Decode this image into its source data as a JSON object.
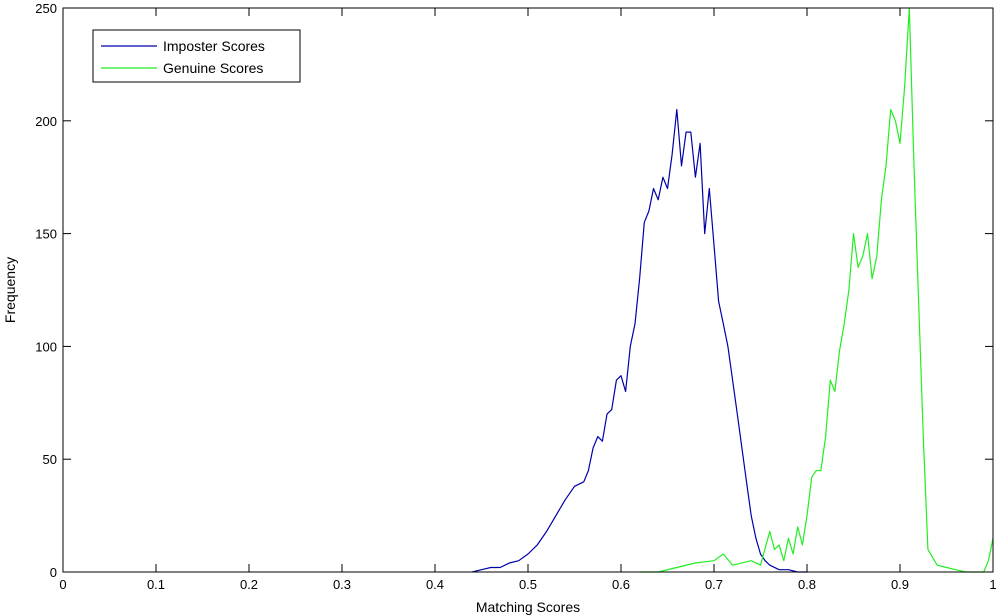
{
  "chart_data": {
    "type": "line",
    "title": "",
    "xlabel": "Matching Scores",
    "ylabel": "Frequency",
    "xlim": [
      0,
      1
    ],
    "ylim": [
      0,
      250
    ],
    "xticks": [
      0,
      0.1,
      0.2,
      0.3,
      0.4,
      0.5,
      0.6,
      0.7,
      0.8,
      0.9,
      1
    ],
    "xtick_labels": [
      "0",
      "0.1",
      "0.2",
      "0.3",
      "0.4",
      "0.5",
      "0.6",
      "0.7",
      "0.8",
      "0.9",
      "1"
    ],
    "yticks": [
      0,
      50,
      100,
      150,
      200,
      250
    ],
    "ytick_labels": [
      "0",
      "50",
      "100",
      "150",
      "200",
      "250"
    ],
    "grid": false,
    "legend": {
      "position": "top-left",
      "entries": [
        "Imposter Scores",
        "Genuine Scores"
      ]
    },
    "series": [
      {
        "name": "Imposter Scores",
        "color": "#0000aa",
        "x": [
          0.44,
          0.45,
          0.46,
          0.47,
          0.48,
          0.49,
          0.5,
          0.51,
          0.52,
          0.53,
          0.54,
          0.55,
          0.56,
          0.565,
          0.57,
          0.575,
          0.58,
          0.585,
          0.59,
          0.595,
          0.6,
          0.605,
          0.61,
          0.615,
          0.62,
          0.625,
          0.63,
          0.635,
          0.64,
          0.645,
          0.65,
          0.655,
          0.66,
          0.665,
          0.67,
          0.675,
          0.68,
          0.685,
          0.69,
          0.695,
          0.7,
          0.705,
          0.71,
          0.715,
          0.72,
          0.725,
          0.73,
          0.735,
          0.74,
          0.745,
          0.75,
          0.755,
          0.76,
          0.77,
          0.78,
          0.79,
          0.8
        ],
        "y": [
          0,
          1,
          2,
          2,
          4,
          5,
          8,
          12,
          18,
          25,
          32,
          38,
          40,
          45,
          55,
          60,
          58,
          70,
          72,
          85,
          87,
          80,
          100,
          110,
          130,
          155,
          160,
          170,
          165,
          175,
          170,
          185,
          205,
          180,
          195,
          195,
          175,
          190,
          150,
          170,
          145,
          120,
          110,
          100,
          85,
          70,
          55,
          40,
          25,
          15,
          8,
          5,
          3,
          1,
          1,
          0,
          0
        ]
      },
      {
        "name": "Genuine Scores",
        "color": "#22ee22",
        "x": [
          0.62,
          0.64,
          0.66,
          0.68,
          0.7,
          0.71,
          0.72,
          0.74,
          0.75,
          0.76,
          0.765,
          0.77,
          0.775,
          0.78,
          0.785,
          0.79,
          0.795,
          0.8,
          0.805,
          0.81,
          0.815,
          0.82,
          0.825,
          0.83,
          0.835,
          0.84,
          0.845,
          0.85,
          0.855,
          0.86,
          0.865,
          0.87,
          0.875,
          0.88,
          0.885,
          0.89,
          0.895,
          0.9,
          0.905,
          0.91,
          0.915,
          0.92,
          0.925,
          0.93,
          0.94,
          0.95,
          0.96,
          0.97,
          0.98,
          0.99,
          0.995,
          1.0
        ],
        "y": [
          0,
          0,
          2,
          4,
          5,
          8,
          3,
          5,
          3,
          18,
          10,
          12,
          5,
          15,
          8,
          20,
          12,
          25,
          42,
          45,
          45,
          60,
          85,
          80,
          98,
          110,
          125,
          150,
          135,
          140,
          150,
          130,
          140,
          165,
          180,
          205,
          200,
          190,
          215,
          250,
          180,
          120,
          60,
          10,
          3,
          2,
          1,
          0,
          0,
          0,
          5,
          15
        ]
      }
    ]
  }
}
